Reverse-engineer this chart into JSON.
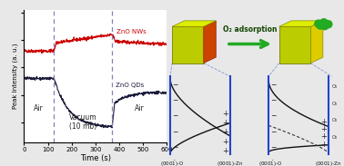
{
  "fig_width": 3.78,
  "fig_height": 1.83,
  "dpi": 100,
  "bg_color": "#e8e8e8",
  "plot_bg": "#ffffff",
  "left_panel": {
    "xlim": [
      0,
      600
    ],
    "xticks": [
      0,
      100,
      200,
      300,
      400,
      500,
      600
    ],
    "xlabel": "Time (s)",
    "ylabel": "Peak Intensity (a. u.)",
    "vlines": [
      125,
      370
    ],
    "vline_color": "#8080bb",
    "nw_color": "#cc0000",
    "qd_color": "#1a1a3a"
  },
  "right_panel": {
    "arrow_text": "O₂ adsorption",
    "cube_left_color": "#ccdd00",
    "cube_right_color": "#ddee00",
    "cube_red_face": "#cc4400",
    "cube_top_color": "#eeff44",
    "o2_green": "#22aa22",
    "band_blue": "#2244cc",
    "band_black": "#111111"
  }
}
